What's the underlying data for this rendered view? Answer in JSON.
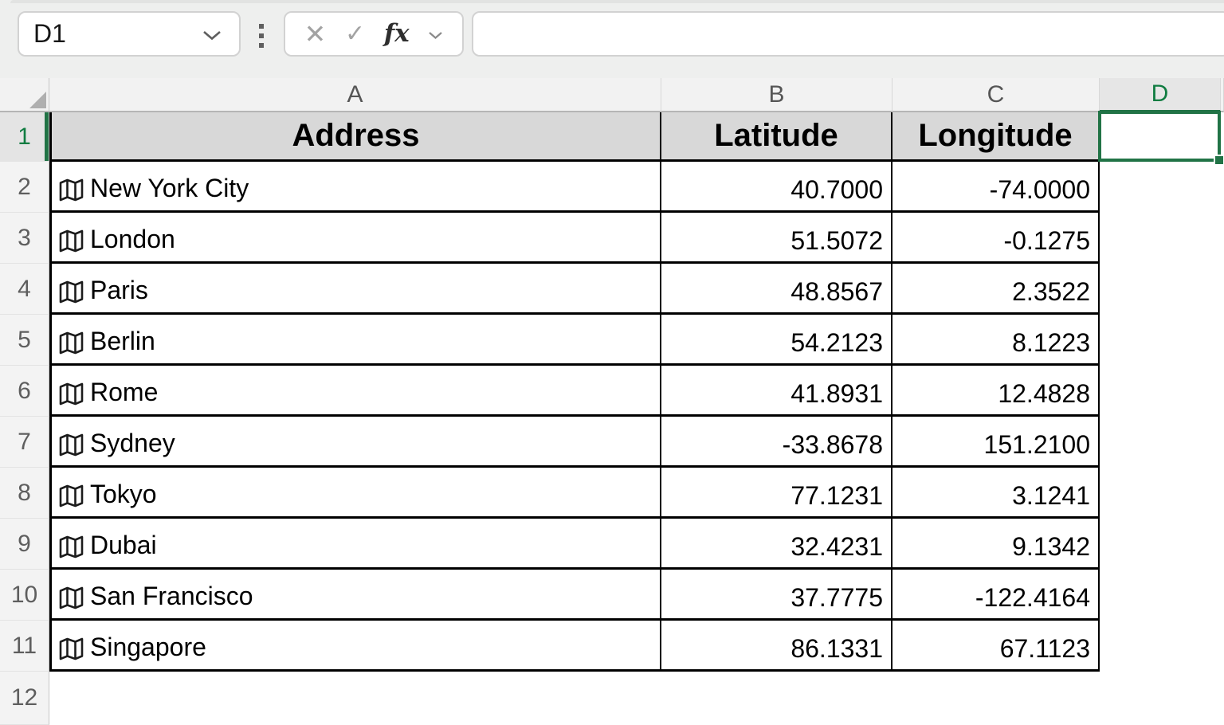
{
  "formula_bar": {
    "name_box_value": "D1",
    "cancel_icon": "✕",
    "enter_icon": "✓",
    "insert_function_label": "fx",
    "formula_input_value": ""
  },
  "grid": {
    "selected_cell": "D1",
    "selected_column": "D",
    "selected_row": "1",
    "column_headers": [
      "A",
      "B",
      "C",
      "D"
    ],
    "row_headers": [
      "1",
      "2",
      "3",
      "4",
      "5",
      "6",
      "7",
      "8",
      "9",
      "10",
      "11",
      "12"
    ],
    "table": {
      "headers": [
        "Address",
        "Latitude",
        "Longitude"
      ],
      "rows": [
        {
          "address": "New York City",
          "latitude": "40.7000",
          "longitude": "-74.0000"
        },
        {
          "address": "London",
          "latitude": "51.5072",
          "longitude": "-0.1275"
        },
        {
          "address": "Paris",
          "latitude": "48.8567",
          "longitude": "2.3522"
        },
        {
          "address": "Berlin",
          "latitude": "54.2123",
          "longitude": "8.1223"
        },
        {
          "address": "Rome",
          "latitude": "41.8931",
          "longitude": "12.4828"
        },
        {
          "address": "Sydney",
          "latitude": "-33.8678",
          "longitude": "151.2100"
        },
        {
          "address": "Tokyo",
          "latitude": "77.1231",
          "longitude": "3.1241"
        },
        {
          "address": "Dubai",
          "latitude": "32.4231",
          "longitude": "9.1342"
        },
        {
          "address": "San Francisco",
          "latitude": "37.7775",
          "longitude": "-122.4164"
        },
        {
          "address": "Singapore",
          "latitude": "86.1331",
          "longitude": "67.1123"
        }
      ]
    }
  },
  "icons": {
    "name_box_chevron": "chevron-down",
    "formula_grip": "more-vertical",
    "cancel": "x-cross",
    "enter": "check-mark",
    "insert_function": "fx",
    "fx_chevron": "chevron-down",
    "city_icon": "folded-map",
    "select_all": "corner-triangle",
    "fill_handle": "green-square"
  },
  "colors": {
    "selection_green": "#217346",
    "selected_header_text": "#107C41",
    "table_header_fill": "#D8D8D8",
    "table_border": "#000000",
    "header_strip_fill": "#F2F2F2",
    "formula_strip_fill": "#EEEFEE"
  }
}
